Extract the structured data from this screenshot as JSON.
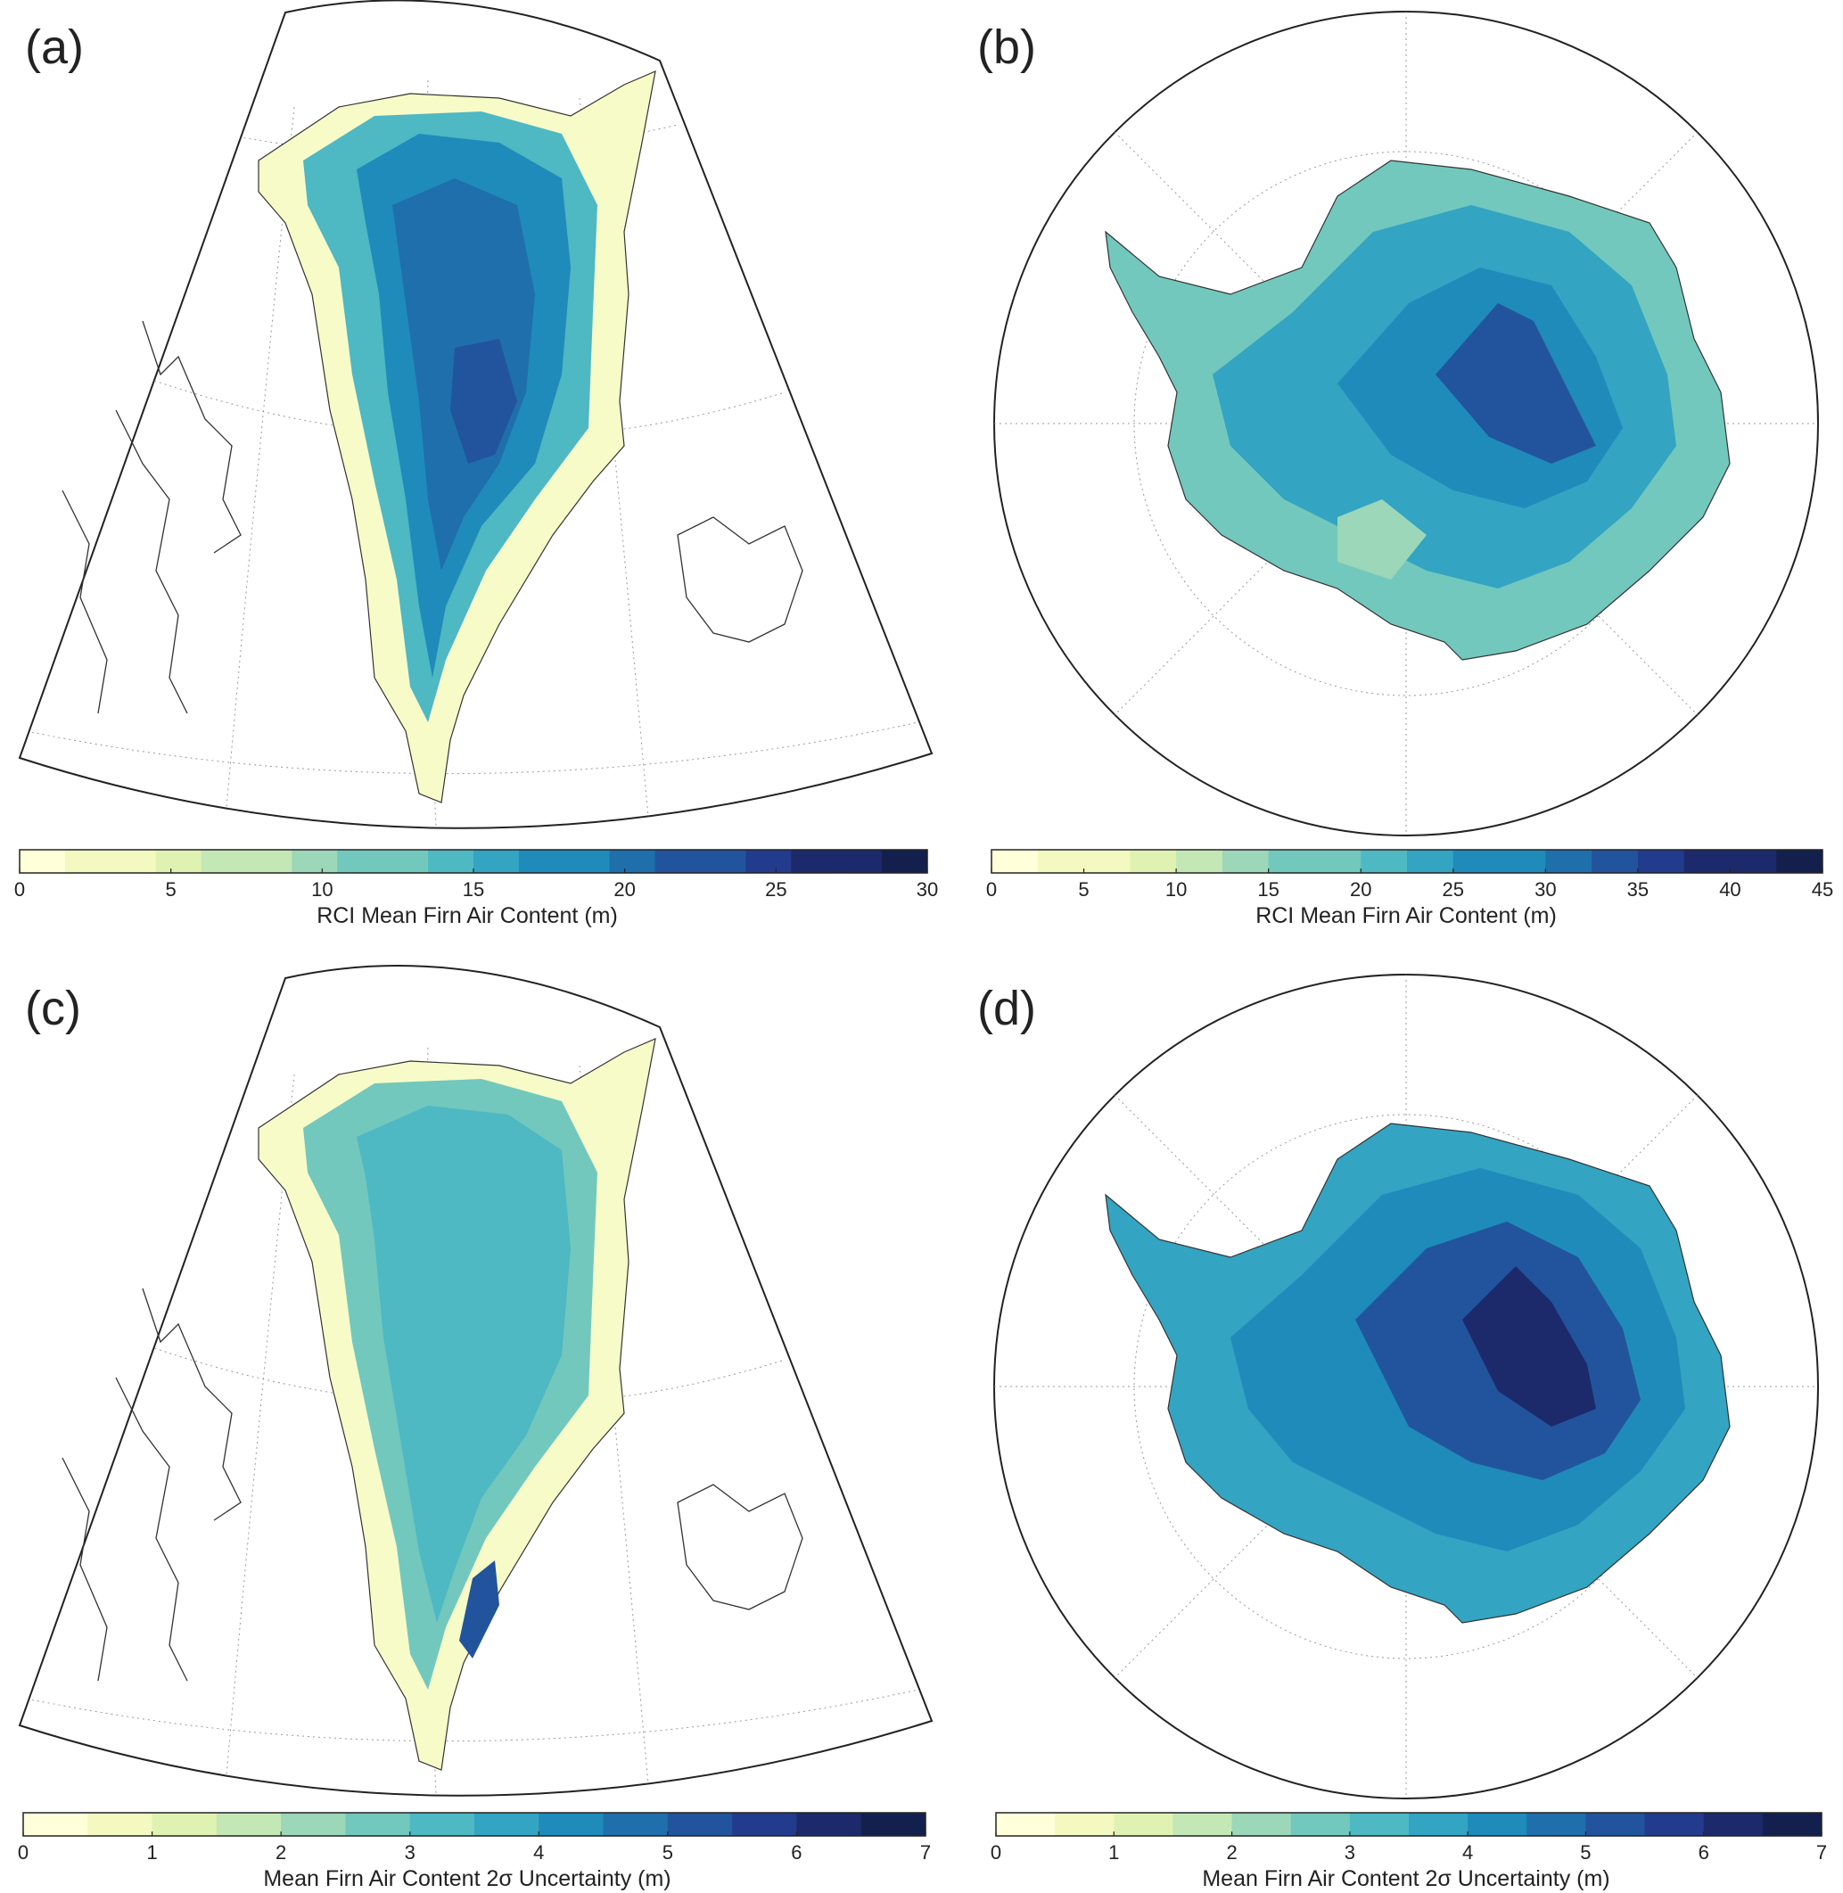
{
  "panels": [
    {
      "id": "a",
      "label": "(a)",
      "region": "Greenland",
      "colorbar": {
        "title": "RCI Mean Firn Air Content (m)",
        "min": 0,
        "max": 30,
        "levels": 20,
        "ticks": [
          "0",
          "5",
          "10",
          "15",
          "20",
          "25",
          "30"
        ]
      }
    },
    {
      "id": "b",
      "label": "(b)",
      "region": "Antarctica",
      "colorbar": {
        "title": "RCI Mean Firn Air Content (m)",
        "min": 0,
        "max": 45,
        "levels": 18,
        "ticks": [
          "0",
          "5",
          "10",
          "15",
          "20",
          "25",
          "30",
          "35",
          "40",
          "45"
        ]
      }
    },
    {
      "id": "c",
      "label": "(c)",
      "region": "Greenland",
      "colorbar": {
        "title": "Mean Firn Air Content 2σ Uncertainty (m)",
        "min": 0,
        "max": 7,
        "levels": 14,
        "ticks": [
          "0",
          "1",
          "2",
          "3",
          "4",
          "5",
          "6",
          "7"
        ]
      }
    },
    {
      "id": "d",
      "label": "(d)",
      "region": "Antarctica",
      "colorbar": {
        "title": "Mean Firn Air Content 2σ Uncertainty (m)",
        "min": 0,
        "max": 7,
        "levels": 14,
        "ticks": [
          "0",
          "1",
          "2",
          "3",
          "4",
          "5",
          "6",
          "7"
        ]
      }
    }
  ],
  "colormap": [
    "#ffffd9",
    "#f3f9c0",
    "#e0f2b2",
    "#c3e7b5",
    "#9bd7b8",
    "#72c8bd",
    "#4eb8c3",
    "#33a4c2",
    "#1f8bbb",
    "#1f6fac",
    "#22549d",
    "#233b8c",
    "#1c2a6b",
    "#13204e"
  ]
}
